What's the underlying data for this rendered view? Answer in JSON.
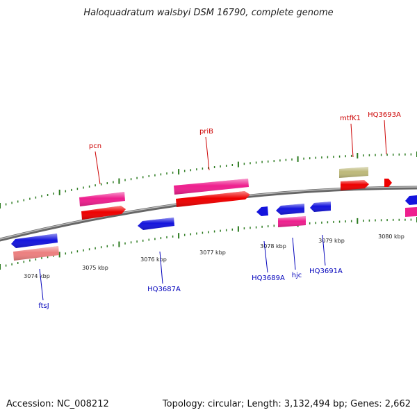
{
  "title": "Haloquadratum walsbyi DSM 16790, complete genome",
  "footer": {
    "accession": "Accession: NC_008212",
    "stats": "Topology: circular; Length: 3,132,494 bp; Genes: 2,662"
  },
  "colors": {
    "backbone": "#8c8c8c",
    "tick": "#2a7a1e",
    "forward_label": "#cc0000",
    "reverse_label": "#0000bb",
    "red_cds": "#ee0000",
    "pink_gene": "#ee1f8e",
    "blue_cds": "#1414dd",
    "olive_gene": "#bdb97a",
    "salmon_gene": "#ec7f7f"
  },
  "forward_labels": [
    {
      "name": "pcn",
      "kbp": 3075.2
    },
    {
      "name": "priB",
      "kbp": 3076.7
    },
    {
      "name": "mtfK1",
      "kbp": 3079.5
    },
    {
      "name": "HQ3693A",
      "kbp": 3079.95
    }
  ],
  "reverse_labels": [
    {
      "name": "ftsJ",
      "kbp": 3074.2
    },
    {
      "name": "HQ3687A",
      "kbp": 3076.05
    },
    {
      "name": "HQ3689A",
      "kbp": 3077.95
    },
    {
      "name": "hjc",
      "kbp": 3078.35
    },
    {
      "name": "HQ3691A",
      "kbp": 3078.95
    }
  ],
  "kbp_ticks": [
    "3074 kbp",
    "3075 kbp",
    "3076 kbp",
    "3077 kbp",
    "3078 kbp",
    "3079 kbp",
    "3080 kbp"
  ]
}
